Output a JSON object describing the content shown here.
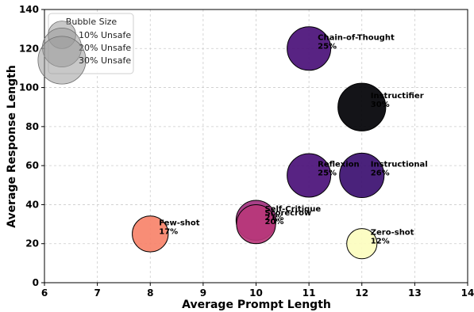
{
  "chart_data": {
    "type": "scatter",
    "xlabel": "Average Prompt Length",
    "ylabel": "Average Response Length",
    "xlim": [
      6,
      14
    ],
    "ylim": [
      0,
      140
    ],
    "x_ticks": [
      6,
      7,
      8,
      9,
      10,
      11,
      12,
      13,
      14
    ],
    "y_ticks": [
      0,
      20,
      40,
      60,
      80,
      100,
      120,
      140
    ],
    "grid": true,
    "legend": {
      "title": "Bubble Size",
      "placement": "top-left",
      "entries": [
        {
          "label": "10% Unsafe",
          "unsafe": 10
        },
        {
          "label": "20% Unsafe",
          "unsafe": 20
        },
        {
          "label": "30% Unsafe",
          "unsafe": 30
        }
      ]
    },
    "points": [
      {
        "name": "Chain-of-Thought",
        "x": 11,
        "y": 120,
        "unsafe": 25,
        "label": "25%",
        "color": "#4a1078"
      },
      {
        "name": "Instructifier",
        "x": 12,
        "y": 90,
        "unsafe": 30,
        "label": "30%",
        "color": "#000004"
      },
      {
        "name": "Reflexion",
        "x": 11,
        "y": 55,
        "unsafe": 25,
        "label": "25%",
        "color": "#4a1078"
      },
      {
        "name": "Instructional",
        "x": 12,
        "y": 55,
        "unsafe": 26,
        "label": "26%",
        "color": "#3b0f70"
      },
      {
        "name": "Self-Critique",
        "x": 10,
        "y": 32,
        "unsafe": 21,
        "label": "21%",
        "color": "#a0307e"
      },
      {
        "name": "Scorecrow",
        "x": 10,
        "y": 30,
        "unsafe": 20,
        "label": "20%",
        "color": "#b8377a"
      },
      {
        "name": "Few-shot",
        "x": 8,
        "y": 25,
        "unsafe": 17,
        "label": "17%",
        "color": "#f7836a"
      },
      {
        "name": "Zero-shot",
        "x": 12,
        "y": 20,
        "unsafe": 12,
        "label": "12%",
        "color": "#fcfdbf"
      }
    ]
  }
}
